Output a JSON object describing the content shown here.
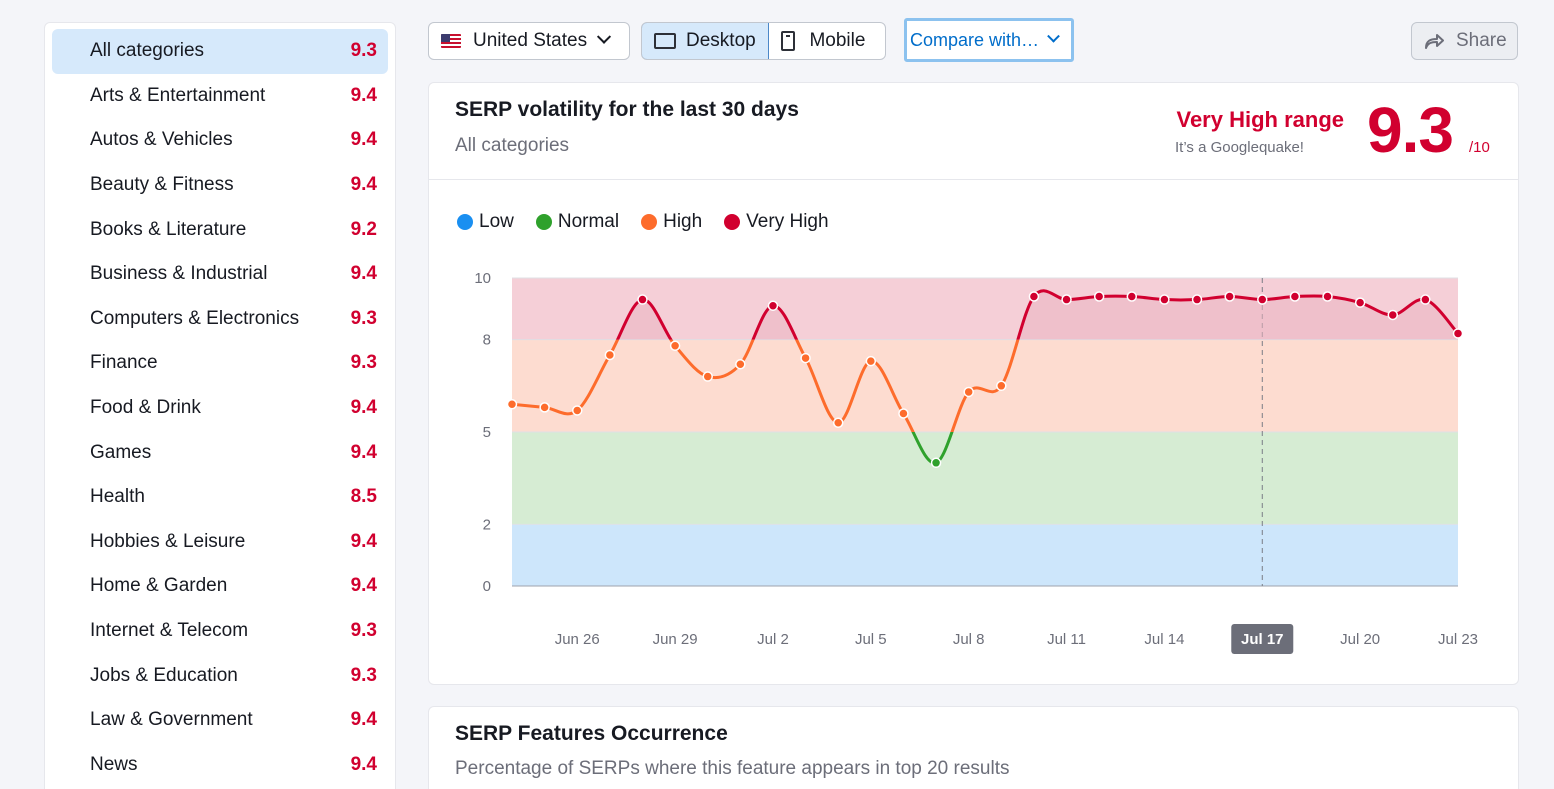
{
  "sidebar": {
    "items": [
      {
        "label": "All categories",
        "score": "9.3"
      },
      {
        "label": "Arts & Entertainment",
        "score": "9.4"
      },
      {
        "label": "Autos & Vehicles",
        "score": "9.4"
      },
      {
        "label": "Beauty & Fitness",
        "score": "9.4"
      },
      {
        "label": "Books & Literature",
        "score": "9.2"
      },
      {
        "label": "Business & Industrial",
        "score": "9.4"
      },
      {
        "label": "Computers & Electronics",
        "score": "9.3"
      },
      {
        "label": "Finance",
        "score": "9.3"
      },
      {
        "label": "Food & Drink",
        "score": "9.4"
      },
      {
        "label": "Games",
        "score": "9.4"
      },
      {
        "label": "Health",
        "score": "8.5"
      },
      {
        "label": "Hobbies & Leisure",
        "score": "9.4"
      },
      {
        "label": "Home & Garden",
        "score": "9.4"
      },
      {
        "label": "Internet & Telecom",
        "score": "9.3"
      },
      {
        "label": "Jobs & Education",
        "score": "9.3"
      },
      {
        "label": "Law & Government",
        "score": "9.4"
      },
      {
        "label": "News",
        "score": "9.4"
      }
    ]
  },
  "toolbar": {
    "country": "United States",
    "desktop": "Desktop",
    "mobile": "Mobile",
    "compare": "Compare with…",
    "share": "Share"
  },
  "volatility": {
    "title": "SERP volatility for the last 30 days",
    "subtitle": "All categories",
    "range_label": "Very High range",
    "range_note": "It’s a Googlequake!",
    "score": "9.3",
    "score_max": "/10"
  },
  "legend": [
    {
      "label": "Low",
      "color": "#1a8ff1"
    },
    {
      "label": "Normal",
      "color": "#2fa12c"
    },
    {
      "label": "High",
      "color": "#fd6c2c"
    },
    {
      "label": "Very High",
      "color": "#d1002f"
    }
  ],
  "chart_data": {
    "type": "line",
    "title": "SERP volatility for the last 30 days",
    "ylim": [
      0,
      10
    ],
    "yticks": [
      0,
      2,
      5,
      8,
      10
    ],
    "bands": [
      {
        "name": "Low",
        "from": 0,
        "to": 2,
        "color": "#cde6fb"
      },
      {
        "name": "Normal",
        "from": 2,
        "to": 5,
        "color": "#d6ecd3"
      },
      {
        "name": "High",
        "from": 5,
        "to": 8,
        "color": "#fddcd0"
      },
      {
        "name": "Very High",
        "from": 8,
        "to": 10,
        "color": "#f5cfd7"
      }
    ],
    "x_labels": [
      "Jun 26",
      "Jun 29",
      "Jul 2",
      "Jul 5",
      "Jul 8",
      "Jul 11",
      "Jul 14",
      "Jul 17",
      "Jul 20",
      "Jul 23"
    ],
    "x_label_index": [
      2,
      5,
      8,
      11,
      14,
      17,
      20,
      23,
      26,
      29
    ],
    "highlight_index": 23,
    "highlight_label": "Jul 17",
    "values": [
      5.9,
      5.8,
      5.7,
      7.5,
      9.3,
      7.8,
      6.8,
      7.2,
      9.1,
      7.4,
      5.3,
      7.3,
      5.6,
      4.0,
      6.3,
      6.5,
      9.4,
      9.3,
      9.4,
      9.4,
      9.3,
      9.3,
      9.4,
      9.3,
      9.4,
      9.4,
      9.2,
      8.8,
      9.3,
      8.2
    ]
  },
  "features": {
    "title": "SERP Features Occurrence",
    "subtitle": "Percentage of SERPs where this feature appears in top 20 results"
  }
}
